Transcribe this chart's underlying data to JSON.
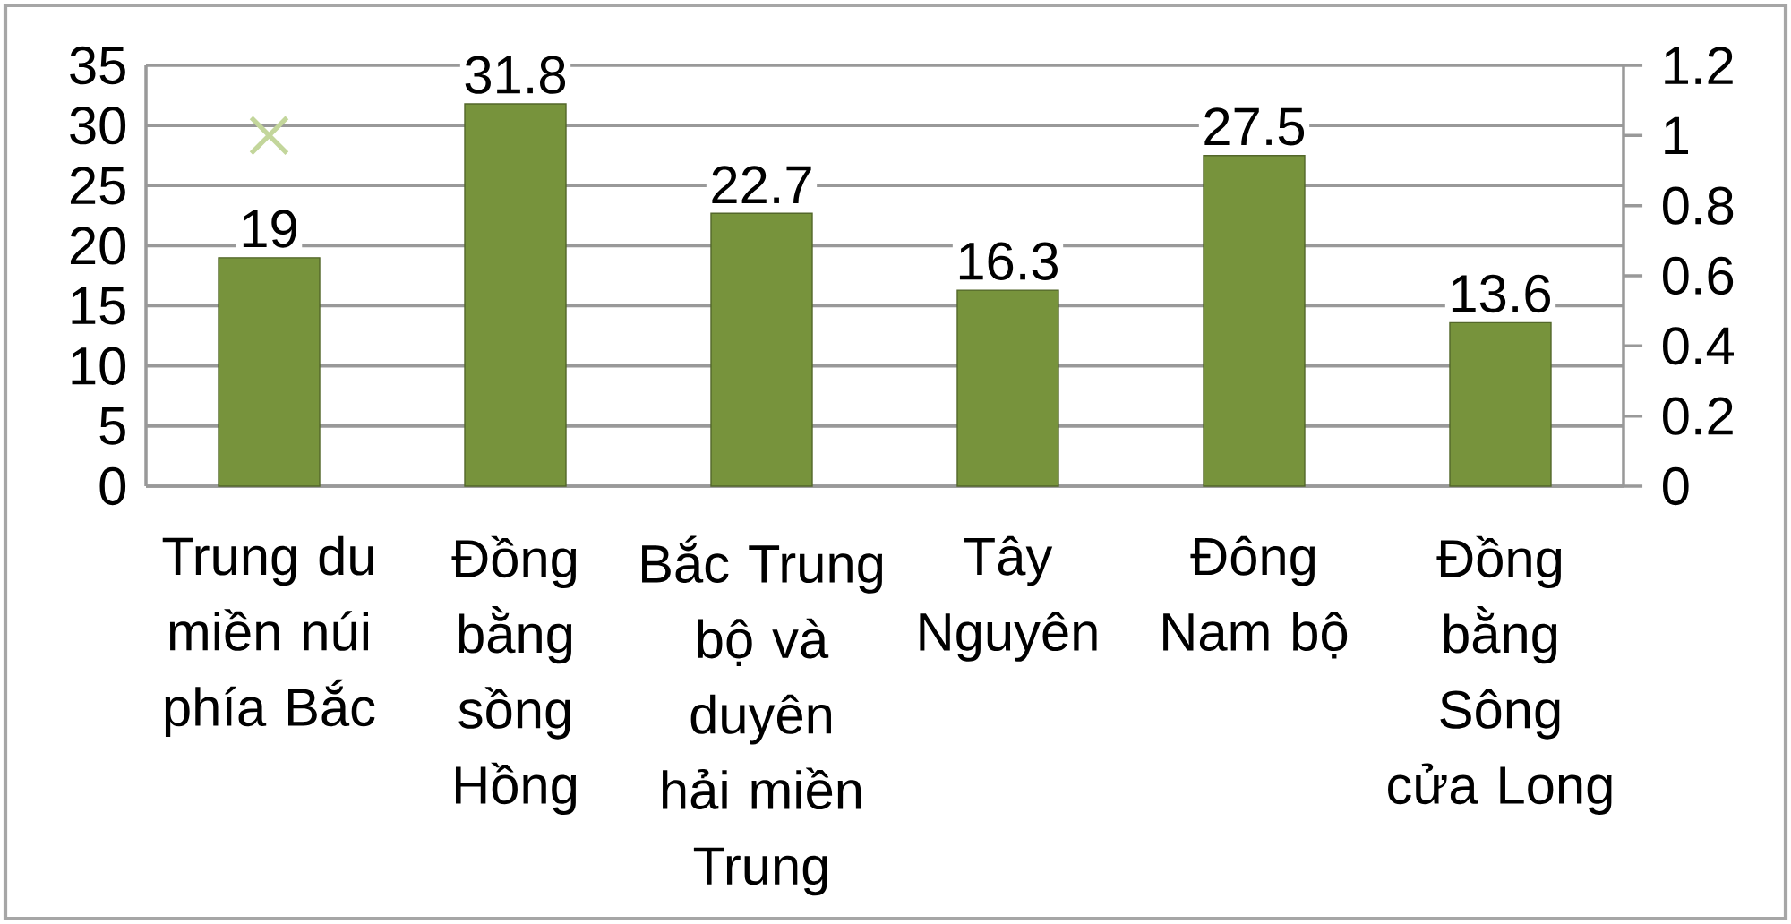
{
  "chart_data": {
    "type": "bar",
    "categories": [
      "Trung du miền núi phía Bắc",
      "Đồng bằng sồng Hồng",
      "Bắc Trung bộ và duyên hải miền Trung",
      "Tây Nguyên",
      "Đông Nam bộ",
      "Đồng bằng Sông cửa Long"
    ],
    "series": [
      {
        "type": "bar",
        "color": "#77933c",
        "values": [
          19,
          31.8,
          22.7,
          16.3,
          27.5,
          13.6
        ],
        "value_labels": [
          "19",
          "31.8",
          "22.7",
          "16.3",
          "27.5",
          "13.6"
        ]
      },
      {
        "type": "scatter",
        "axis": "y2",
        "color": "#c3d69b",
        "marker": "cross",
        "values": [
          1,
          null,
          null,
          null,
          null,
          null
        ]
      }
    ],
    "ylim": [
      0,
      35
    ],
    "yticks": [
      0,
      5,
      10,
      15,
      20,
      25,
      30,
      35
    ],
    "y2lim": [
      0,
      1.2
    ],
    "y2ticks": [
      0,
      0.2,
      0.4,
      0.6,
      0.8,
      1,
      1.2
    ],
    "grid": "y"
  }
}
